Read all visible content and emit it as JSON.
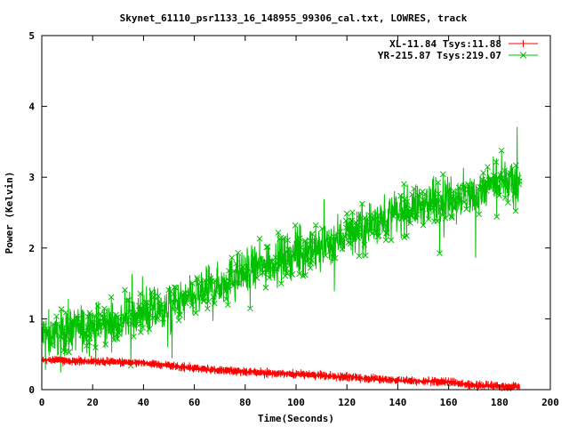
{
  "chart_data": {
    "type": "line",
    "title": "Skynet_61110_psr1133_16_148955_99306_cal.txt, LOWRES, track",
    "xlabel": "Time(Seconds)",
    "ylabel": "Power (Kelvin)",
    "xlim": [
      0,
      200
    ],
    "ylim": [
      0,
      5
    ],
    "xticks": [
      "0",
      "20",
      "40",
      "60",
      "80",
      "100",
      "120",
      "140",
      "160",
      "180",
      "200"
    ],
    "yticks": [
      "0",
      "1",
      "2",
      "3",
      "4",
      "5"
    ],
    "legend_position": "top-right",
    "grid": false,
    "series": [
      {
        "name": "XL-11.84 Tsys:11.88",
        "color": "#ff0000",
        "marker": "plus",
        "x": [
          0,
          20,
          40,
          50,
          60,
          80,
          100,
          120,
          140,
          160,
          170,
          180,
          188
        ],
        "y": [
          0.42,
          0.4,
          0.38,
          0.34,
          0.3,
          0.25,
          0.22,
          0.18,
          0.13,
          0.11,
          0.06,
          0.05,
          0.04
        ],
        "noise": 0.03
      },
      {
        "name": "YR-215.87 Tsys:219.07",
        "color": "#00c000",
        "marker": "x",
        "x": [
          0,
          10,
          20,
          30,
          40,
          50,
          60,
          70,
          80,
          90,
          100,
          110,
          120,
          130,
          140,
          150,
          160,
          170,
          180,
          188
        ],
        "y": [
          0.75,
          0.85,
          0.9,
          0.95,
          1.05,
          1.15,
          1.3,
          1.5,
          1.65,
          1.8,
          1.9,
          2.0,
          2.2,
          2.35,
          2.5,
          2.6,
          2.7,
          2.75,
          2.9,
          2.9
        ],
        "noise": 0.3
      }
    ]
  }
}
